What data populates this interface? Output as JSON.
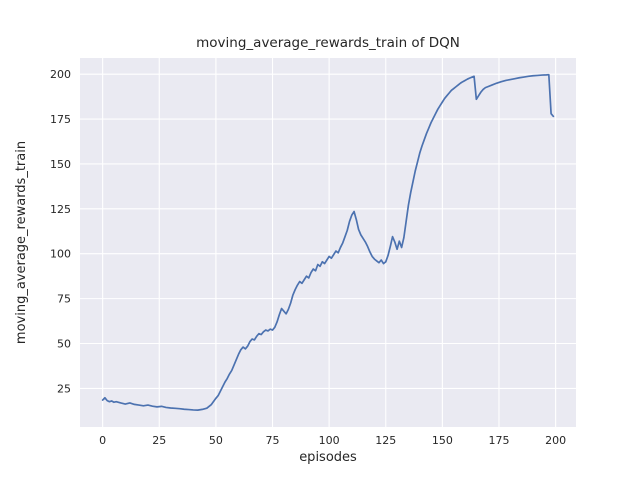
{
  "figure": {
    "background": "#ffffff"
  },
  "chart_data": {
    "type": "line",
    "title": "moving_average_rewards_train of DQN",
    "xlabel": "episodes",
    "ylabel": "moving_average_rewards_train",
    "xlim": [
      -10,
      209
    ],
    "ylim": [
      3.5,
      209
    ],
    "x_ticks": [
      0,
      25,
      50,
      75,
      100,
      125,
      150,
      175,
      200
    ],
    "y_ticks": [
      25,
      50,
      75,
      100,
      125,
      150,
      175,
      200
    ],
    "grid": true,
    "legend_position": "none",
    "plot_background": "#eaeaf2",
    "grid_color": "#ffffff",
    "line_color": "#4c72b0",
    "series": [
      {
        "name": "moving_average_rewards_train",
        "points": [
          [
            0,
            18.5
          ],
          [
            1,
            19.8
          ],
          [
            2,
            18.2
          ],
          [
            3,
            17.6
          ],
          [
            4,
            18.0
          ],
          [
            5,
            17.3
          ],
          [
            6,
            17.6
          ],
          [
            8,
            16.9
          ],
          [
            10,
            16.3
          ],
          [
            12,
            16.9
          ],
          [
            14,
            16.1
          ],
          [
            16,
            15.7
          ],
          [
            18,
            15.3
          ],
          [
            20,
            15.7
          ],
          [
            22,
            15.1
          ],
          [
            24,
            14.7
          ],
          [
            26,
            15.0
          ],
          [
            28,
            14.4
          ],
          [
            30,
            14.1
          ],
          [
            32,
            13.9
          ],
          [
            34,
            13.7
          ],
          [
            36,
            13.4
          ],
          [
            38,
            13.2
          ],
          [
            40,
            13.0
          ],
          [
            42,
            12.9
          ],
          [
            44,
            13.3
          ],
          [
            46,
            14.0
          ],
          [
            48,
            16.0
          ],
          [
            50,
            19.5
          ],
          [
            51,
            21.0
          ],
          [
            52,
            23.5
          ],
          [
            53,
            26.0
          ],
          [
            54,
            28.5
          ],
          [
            55,
            30.5
          ],
          [
            56,
            33.0
          ],
          [
            57,
            35.0
          ],
          [
            58,
            38.0
          ],
          [
            59,
            41.0
          ],
          [
            60,
            44.0
          ],
          [
            61,
            46.5
          ],
          [
            62,
            48.0
          ],
          [
            63,
            47.0
          ],
          [
            64,
            48.5
          ],
          [
            65,
            51.0
          ],
          [
            66,
            52.5
          ],
          [
            67,
            52.0
          ],
          [
            68,
            54.0
          ],
          [
            69,
            55.5
          ],
          [
            70,
            55.0
          ],
          [
            71,
            56.5
          ],
          [
            72,
            57.5
          ],
          [
            73,
            57.0
          ],
          [
            74,
            58.0
          ],
          [
            75,
            57.5
          ],
          [
            76,
            59.0
          ],
          [
            77,
            62.0
          ],
          [
            78,
            66.0
          ],
          [
            79,
            69.5
          ],
          [
            80,
            68.0
          ],
          [
            81,
            66.5
          ],
          [
            82,
            69.0
          ],
          [
            83,
            72.5
          ],
          [
            84,
            77.0
          ],
          [
            85,
            80.0
          ],
          [
            86,
            82.5
          ],
          [
            87,
            84.5
          ],
          [
            88,
            83.5
          ],
          [
            89,
            85.5
          ],
          [
            90,
            87.5
          ],
          [
            91,
            86.5
          ],
          [
            92,
            89.5
          ],
          [
            93,
            91.5
          ],
          [
            94,
            90.5
          ],
          [
            95,
            94.0
          ],
          [
            96,
            93.0
          ],
          [
            97,
            95.5
          ],
          [
            98,
            94.5
          ],
          [
            99,
            96.5
          ],
          [
            100,
            98.5
          ],
          [
            101,
            97.5
          ],
          [
            102,
            99.5
          ],
          [
            103,
            101.5
          ],
          [
            104,
            100.5
          ],
          [
            105,
            103.5
          ],
          [
            106,
            106.0
          ],
          [
            107,
            109.5
          ],
          [
            108,
            113.0
          ],
          [
            109,
            118.0
          ],
          [
            110,
            121.5
          ],
          [
            111,
            123.5
          ],
          [
            112,
            119.0
          ],
          [
            113,
            113.5
          ],
          [
            114,
            110.5
          ],
          [
            115,
            108.5
          ],
          [
            116,
            106.5
          ],
          [
            117,
            104.0
          ],
          [
            118,
            101.0
          ],
          [
            119,
            98.5
          ],
          [
            120,
            97.0
          ],
          [
            121,
            96.0
          ],
          [
            122,
            95.0
          ],
          [
            123,
            96.5
          ],
          [
            124,
            94.5
          ],
          [
            125,
            95.5
          ],
          [
            126,
            99.0
          ],
          [
            127,
            104.0
          ],
          [
            128,
            109.5
          ],
          [
            129,
            106.5
          ],
          [
            130,
            102.5
          ],
          [
            131,
            107.0
          ],
          [
            132,
            103.5
          ],
          [
            133,
            109.0
          ],
          [
            134,
            118.0
          ],
          [
            135,
            127.0
          ],
          [
            136,
            134.0
          ],
          [
            137,
            140.0
          ],
          [
            138,
            146.0
          ],
          [
            139,
            151.0
          ],
          [
            140,
            156.0
          ],
          [
            141,
            160.0
          ],
          [
            142,
            163.5
          ],
          [
            143,
            167.0
          ],
          [
            144,
            170.0
          ],
          [
            145,
            173.0
          ],
          [
            146,
            175.5
          ],
          [
            147,
            178.0
          ],
          [
            148,
            180.5
          ],
          [
            149,
            182.5
          ],
          [
            150,
            184.5
          ],
          [
            151,
            186.5
          ],
          [
            152,
            188.0
          ],
          [
            153,
            189.5
          ],
          [
            154,
            191.0
          ],
          [
            155,
            192.0
          ],
          [
            156,
            193.0
          ],
          [
            157,
            194.0
          ],
          [
            158,
            195.0
          ],
          [
            159,
            195.8
          ],
          [
            160,
            196.5
          ],
          [
            161,
            197.2
          ],
          [
            162,
            197.8
          ],
          [
            163,
            198.3
          ],
          [
            164,
            198.8
          ],
          [
            165,
            186.0
          ],
          [
            166,
            188.0
          ],
          [
            167,
            190.0
          ],
          [
            168,
            191.5
          ],
          [
            169,
            192.5
          ],
          [
            170,
            193.0
          ],
          [
            172,
            194.0
          ],
          [
            174,
            195.0
          ],
          [
            176,
            195.8
          ],
          [
            178,
            196.5
          ],
          [
            180,
            197.0
          ],
          [
            182,
            197.5
          ],
          [
            184,
            198.0
          ],
          [
            186,
            198.4
          ],
          [
            188,
            198.8
          ],
          [
            190,
            199.1
          ],
          [
            192,
            199.3
          ],
          [
            194,
            199.5
          ],
          [
            196,
            199.6
          ],
          [
            197,
            199.7
          ],
          [
            198,
            178.0
          ],
          [
            199,
            176.5
          ]
        ]
      }
    ]
  }
}
